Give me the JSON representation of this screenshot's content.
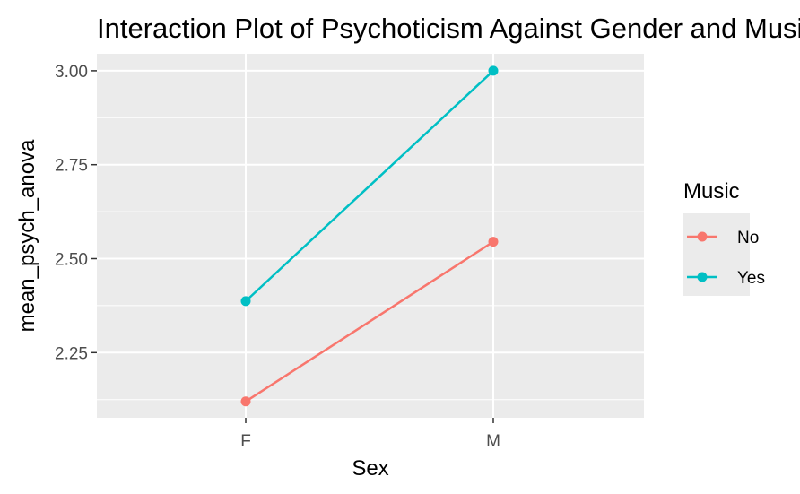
{
  "chart_data": {
    "type": "line",
    "title": "Interaction Plot of Psychoticism Against Gender and Music",
    "xlabel": "Sex",
    "ylabel": "mean_psych_anova",
    "categories": [
      "F",
      "M"
    ],
    "y_ticks": [
      "2.25",
      "2.50",
      "2.75",
      "3.00"
    ],
    "ylim": [
      2.08,
      3.0
    ],
    "grid": true,
    "legend": {
      "title": "Music",
      "position": "right"
    },
    "series": [
      {
        "name": "No",
        "values": [
          2.12,
          2.545
        ],
        "color": "#F8766D"
      },
      {
        "name": "Yes",
        "values": [
          2.387,
          3.0
        ],
        "color": "#00BFC4"
      }
    ]
  }
}
